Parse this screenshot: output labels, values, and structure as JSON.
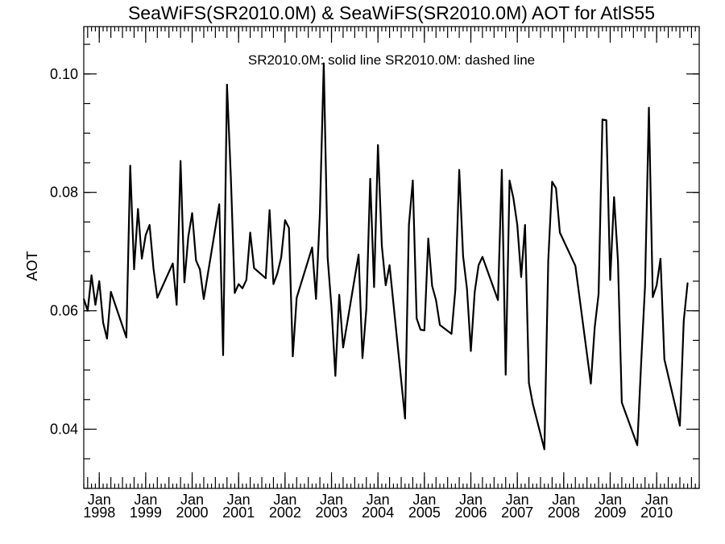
{
  "chart_data": {
    "type": "line",
    "title": "SeaWiFS(SR2010.0M) & SeaWiFS(SR2010.0M)  AOT for AtlS55",
    "annotation": "SR2010.0M: solid line   SR2010.0M: dashed line",
    "ylabel": "AOT",
    "xlabel": "",
    "xlim": [
      "1997-09",
      "2010-12"
    ],
    "ylim": [
      0.03,
      0.108
    ],
    "y_major_ticks": [
      0.04,
      0.06,
      0.08,
      0.1
    ],
    "y_tick_labels": [
      "0.04",
      "0.06",
      "0.08",
      "0.10"
    ],
    "y_minor_step": 0.005,
    "x_major_ticks": [
      {
        "date": "1998-01",
        "month": "Jan",
        "year": "1998"
      },
      {
        "date": "1999-01",
        "month": "Jan",
        "year": "1999"
      },
      {
        "date": "2000-01",
        "month": "Jan",
        "year": "2000"
      },
      {
        "date": "2001-01",
        "month": "Jan",
        "year": "2001"
      },
      {
        "date": "2002-01",
        "month": "Jan",
        "year": "2002"
      },
      {
        "date": "2003-01",
        "month": "Jan",
        "year": "2003"
      },
      {
        "date": "2004-01",
        "month": "Jan",
        "year": "2004"
      },
      {
        "date": "2005-01",
        "month": "Jan",
        "year": "2005"
      },
      {
        "date": "2006-01",
        "month": "Jan",
        "year": "2006"
      },
      {
        "date": "2007-01",
        "month": "Jan",
        "year": "2007"
      },
      {
        "date": "2008-01",
        "month": "Jan",
        "year": "2008"
      },
      {
        "date": "2009-01",
        "month": "Jan",
        "year": "2009"
      },
      {
        "date": "2010-01",
        "month": "Jan",
        "year": "2010"
      }
    ],
    "grid": false,
    "series": [
      {
        "style": "solid",
        "color": "#000000",
        "points": [
          [
            "1997-09",
            0.062
          ],
          [
            "1997-10",
            0.06
          ],
          [
            "1997-11",
            0.066
          ],
          [
            "1997-12",
            0.061
          ],
          [
            "1998-01",
            0.065
          ],
          [
            "1998-02",
            0.058
          ],
          [
            "1998-03",
            0.0553
          ],
          [
            "1998-04",
            0.0632
          ],
          [
            "1998-08",
            0.0555
          ],
          [
            "1998-09",
            0.0845
          ],
          [
            "1998-10",
            0.067
          ],
          [
            "1998-11",
            0.0772
          ],
          [
            "1998-12",
            0.0688
          ],
          [
            "1999-01",
            0.0728
          ],
          [
            "1999-02",
            0.0745
          ],
          [
            "1999-03",
            0.0672
          ],
          [
            "1999-04",
            0.0622
          ],
          [
            "1999-08",
            0.068
          ],
          [
            "1999-09",
            0.061
          ],
          [
            "1999-10",
            0.0853
          ],
          [
            "1999-11",
            0.0648
          ],
          [
            "1999-12",
            0.0725
          ],
          [
            "2000-01",
            0.0765
          ],
          [
            "2000-02",
            0.0685
          ],
          [
            "2000-03",
            0.067
          ],
          [
            "2000-04",
            0.062
          ],
          [
            "2000-08",
            0.078
          ],
          [
            "2000-09",
            0.0525
          ],
          [
            "2000-10",
            0.0982
          ],
          [
            "2000-11",
            0.0825
          ],
          [
            "2000-12",
            0.063
          ],
          [
            "2001-01",
            0.0645
          ],
          [
            "2001-02",
            0.0638
          ],
          [
            "2001-03",
            0.0652
          ],
          [
            "2001-04",
            0.0732
          ],
          [
            "2001-05",
            0.0672
          ],
          [
            "2001-08",
            0.0655
          ],
          [
            "2001-09",
            0.077
          ],
          [
            "2001-10",
            0.0645
          ],
          [
            "2001-11",
            0.0663
          ],
          [
            "2001-12",
            0.069
          ],
          [
            "2002-01",
            0.0753
          ],
          [
            "2002-02",
            0.074
          ],
          [
            "2002-03",
            0.0523
          ],
          [
            "2002-04",
            0.0622
          ],
          [
            "2002-08",
            0.0707
          ],
          [
            "2002-09",
            0.062
          ],
          [
            "2002-10",
            0.0765
          ],
          [
            "2002-11",
            0.1018
          ],
          [
            "2002-12",
            0.069
          ],
          [
            "2003-01",
            0.0605
          ],
          [
            "2003-02",
            0.049
          ],
          [
            "2003-03",
            0.0627
          ],
          [
            "2003-04",
            0.0538
          ],
          [
            "2003-08",
            0.0695
          ],
          [
            "2003-09",
            0.052
          ],
          [
            "2003-10",
            0.0603
          ],
          [
            "2003-11",
            0.0823
          ],
          [
            "2003-12",
            0.064
          ],
          [
            "2004-01",
            0.088
          ],
          [
            "2004-02",
            0.071
          ],
          [
            "2004-03",
            0.0643
          ],
          [
            "2004-04",
            0.0677
          ],
          [
            "2004-08",
            0.0418
          ],
          [
            "2004-09",
            0.0745
          ],
          [
            "2004-10",
            0.082
          ],
          [
            "2004-11",
            0.0587
          ],
          [
            "2004-12",
            0.0568
          ],
          [
            "2005-01",
            0.0567
          ],
          [
            "2005-02",
            0.0722
          ],
          [
            "2005-03",
            0.0642
          ],
          [
            "2005-04",
            0.0618
          ],
          [
            "2005-05",
            0.0576
          ],
          [
            "2005-08",
            0.0561
          ],
          [
            "2005-09",
            0.0636
          ],
          [
            "2005-10",
            0.0838
          ],
          [
            "2005-11",
            0.0692
          ],
          [
            "2005-12",
            0.0637
          ],
          [
            "2006-01",
            0.0532
          ],
          [
            "2006-02",
            0.0632
          ],
          [
            "2006-03",
            0.0677
          ],
          [
            "2006-04",
            0.0691
          ],
          [
            "2006-08",
            0.0618
          ],
          [
            "2006-09",
            0.0838
          ],
          [
            "2006-10",
            0.0492
          ],
          [
            "2006-11",
            0.082
          ],
          [
            "2006-12",
            0.079
          ],
          [
            "2007-01",
            0.0745
          ],
          [
            "2007-02",
            0.0657
          ],
          [
            "2007-03",
            0.0745
          ],
          [
            "2007-04",
            0.0478
          ],
          [
            "2007-05",
            0.0443
          ],
          [
            "2007-08",
            0.0366
          ],
          [
            "2007-09",
            0.0685
          ],
          [
            "2007-10",
            0.0818
          ],
          [
            "2007-11",
            0.0807
          ],
          [
            "2007-12",
            0.0732
          ],
          [
            "2008-04",
            0.0676
          ],
          [
            "2008-08",
            0.0477
          ],
          [
            "2008-09",
            0.0572
          ],
          [
            "2008-10",
            0.0628
          ],
          [
            "2008-11",
            0.0923
          ],
          [
            "2008-12",
            0.0922
          ],
          [
            "2009-01",
            0.0652
          ],
          [
            "2009-02",
            0.0792
          ],
          [
            "2009-03",
            0.0685
          ],
          [
            "2009-04",
            0.0445
          ],
          [
            "2009-08",
            0.0373
          ],
          [
            "2009-09",
            0.0512
          ],
          [
            "2009-10",
            0.0642
          ],
          [
            "2009-11",
            0.0943
          ],
          [
            "2009-12",
            0.0623
          ],
          [
            "2010-01",
            0.0643
          ],
          [
            "2010-02",
            0.0688
          ],
          [
            "2010-03",
            0.0518
          ],
          [
            "2010-07",
            0.0406
          ],
          [
            "2010-08",
            0.0583
          ],
          [
            "2010-09",
            0.0647
          ]
        ]
      }
    ]
  }
}
